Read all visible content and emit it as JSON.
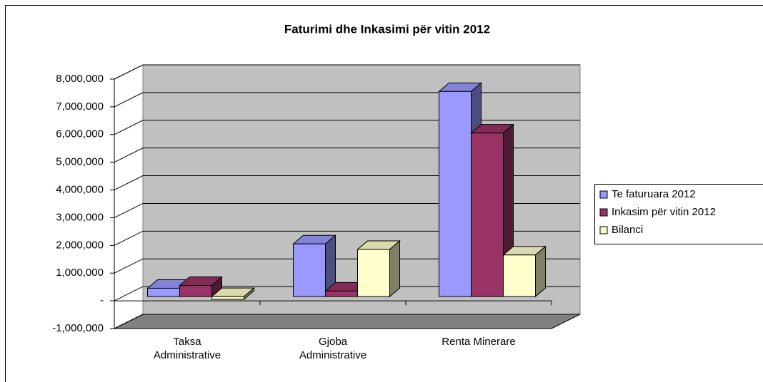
{
  "chart_data": {
    "type": "bar3d",
    "title": "Faturimi dhe Inkasimi për vitin 2012",
    "categories": [
      "Taksa Administrative",
      "Gjoba Administrative",
      "Renta Minerare"
    ],
    "series": [
      {
        "name": "Te faturuara 2012",
        "color": "#9999ff",
        "values": [
          300000,
          1900000,
          7400000
        ]
      },
      {
        "name": "Inkasim për vitin 2012",
        "color": "#993366",
        "values": [
          400000,
          200000,
          5900000
        ]
      },
      {
        "name": "Bilanci",
        "color": "#ffffcc",
        "values": [
          -100000,
          1700000,
          1500000
        ]
      }
    ],
    "ylim": [
      -1000000,
      8000000
    ],
    "yticks": [
      {
        "value": -1000000,
        "label": "-1,000,000"
      },
      {
        "value": 0,
        "label": "-"
      },
      {
        "value": 1000000,
        "label": "1,000,000"
      },
      {
        "value": 2000000,
        "label": "2,000,000"
      },
      {
        "value": 3000000,
        "label": "3,000,000"
      },
      {
        "value": 4000000,
        "label": "4,000,000"
      },
      {
        "value": 5000000,
        "label": "5,000,000"
      },
      {
        "value": 6000000,
        "label": "6,000,000"
      },
      {
        "value": 7000000,
        "label": "7,000,000"
      },
      {
        "value": 8000000,
        "label": "8,000,000"
      }
    ],
    "grid": true,
    "legend": "right"
  }
}
